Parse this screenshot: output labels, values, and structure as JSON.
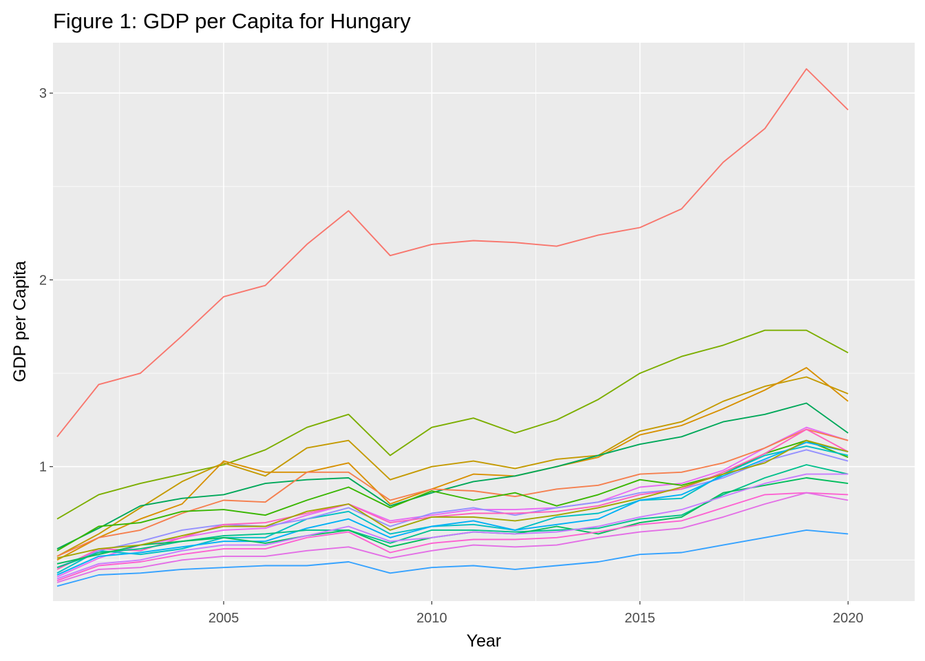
{
  "chart_data": {
    "type": "line",
    "title": "Figure 1: GDP per Capita for Hungary",
    "xlabel": "Year",
    "ylabel": "GDP per Capita",
    "xlim": [
      2000.9,
      2021.6
    ],
    "ylim": [
      0.28,
      3.27
    ],
    "x_ticks": [
      2005,
      2010,
      2015,
      2020
    ],
    "x_tick_labels": [
      "2005",
      "2010",
      "2015",
      "2020"
    ],
    "x_minor_ticks": [
      2002.5,
      2007.5,
      2012.5,
      2017.5
    ],
    "y_ticks": [
      1,
      2,
      3
    ],
    "y_tick_labels": [
      "1",
      "2",
      "3"
    ],
    "y_minor_ticks": [
      0.5,
      1.5,
      2.5
    ],
    "grid": true,
    "legend": "none",
    "background": "#ebebeb",
    "x": [
      2001,
      2002,
      2003,
      2004,
      2005,
      2006,
      2007,
      2008,
      2009,
      2010,
      2011,
      2012,
      2013,
      2014,
      2015,
      2016,
      2017,
      2018,
      2019,
      2020
    ],
    "series": [
      {
        "color": "#f8766d",
        "values": [
          1.16,
          1.44,
          1.5,
          1.7,
          1.91,
          1.97,
          2.19,
          2.37,
          2.13,
          2.19,
          2.21,
          2.2,
          2.18,
          2.24,
          2.28,
          2.38,
          2.63,
          2.81,
          3.13,
          2.91
        ]
      },
      {
        "color": "#7cae00",
        "values": [
          0.72,
          0.85,
          0.91,
          0.96,
          1.01,
          1.09,
          1.21,
          1.28,
          1.06,
          1.21,
          1.26,
          1.18,
          1.25,
          1.36,
          1.5,
          1.59,
          1.65,
          1.73,
          1.73,
          1.61
        ]
      },
      {
        "color": "#c49a00",
        "values": [
          0.52,
          0.64,
          0.78,
          0.92,
          1.02,
          0.95,
          1.1,
          1.14,
          0.93,
          1.0,
          1.03,
          0.99,
          1.04,
          1.06,
          1.19,
          1.24,
          1.35,
          1.43,
          1.48,
          1.39
        ]
      },
      {
        "color": "#d89000",
        "values": [
          0.5,
          0.62,
          0.72,
          0.8,
          1.03,
          0.97,
          0.97,
          1.02,
          0.8,
          0.88,
          0.96,
          0.95,
          1.0,
          1.05,
          1.17,
          1.22,
          1.31,
          1.41,
          1.53,
          1.35
        ]
      },
      {
        "color": "#00a85a",
        "values": [
          0.56,
          0.67,
          0.79,
          0.83,
          0.85,
          0.91,
          0.93,
          0.94,
          0.79,
          0.86,
          0.92,
          0.95,
          1.0,
          1.06,
          1.12,
          1.16,
          1.24,
          1.28,
          1.34,
          1.18
        ]
      },
      {
        "color": "#e76bf3",
        "values": [
          0.41,
          0.51,
          0.58,
          0.62,
          0.66,
          0.67,
          0.74,
          0.8,
          0.71,
          0.74,
          0.77,
          0.77,
          0.78,
          0.81,
          0.89,
          0.91,
          0.98,
          1.1,
          1.21,
          1.14
        ]
      },
      {
        "color": "#f57f4e",
        "values": [
          0.52,
          0.62,
          0.66,
          0.75,
          0.82,
          0.81,
          0.97,
          0.97,
          0.82,
          0.88,
          0.87,
          0.84,
          0.88,
          0.9,
          0.96,
          0.97,
          1.02,
          1.1,
          1.2,
          1.14
        ]
      },
      {
        "color": "#39b600",
        "values": [
          0.55,
          0.68,
          0.7,
          0.76,
          0.77,
          0.74,
          0.82,
          0.89,
          0.78,
          0.87,
          0.82,
          0.86,
          0.79,
          0.85,
          0.93,
          0.9,
          0.96,
          1.07,
          1.14,
          1.05
        ]
      },
      {
        "color": "#00bfc4",
        "values": [
          0.43,
          0.55,
          0.53,
          0.56,
          0.62,
          0.62,
          0.72,
          0.76,
          0.64,
          0.68,
          0.69,
          0.66,
          0.73,
          0.75,
          0.82,
          0.83,
          0.96,
          1.06,
          1.11,
          1.06
        ]
      },
      {
        "color": "#9590ff",
        "values": [
          0.46,
          0.55,
          0.6,
          0.66,
          0.69,
          0.68,
          0.72,
          0.78,
          0.68,
          0.75,
          0.78,
          0.74,
          0.78,
          0.81,
          0.86,
          0.88,
          0.94,
          1.03,
          1.09,
          1.03
        ]
      },
      {
        "color": "#00b0f6",
        "values": [
          0.42,
          0.52,
          0.54,
          0.57,
          0.6,
          0.6,
          0.67,
          0.72,
          0.62,
          0.68,
          0.71,
          0.66,
          0.69,
          0.72,
          0.82,
          0.85,
          0.95,
          1.04,
          1.13,
          1.08
        ]
      },
      {
        "color": "#ff62bc",
        "values": [
          0.45,
          0.56,
          0.55,
          0.62,
          0.69,
          0.7,
          0.75,
          0.8,
          0.7,
          0.73,
          0.75,
          0.75,
          0.76,
          0.79,
          0.85,
          0.88,
          0.97,
          1.07,
          1.2,
          1.08
        ]
      },
      {
        "color": "#00c08b",
        "values": [
          0.46,
          0.54,
          0.56,
          0.6,
          0.63,
          0.64,
          0.66,
          0.66,
          0.59,
          0.66,
          0.66,
          0.65,
          0.66,
          0.67,
          0.72,
          0.74,
          0.85,
          0.94,
          1.01,
          0.96
        ]
      },
      {
        "color": "#00bd5c",
        "values": [
          0.48,
          0.53,
          0.58,
          0.6,
          0.62,
          0.59,
          0.63,
          0.66,
          0.57,
          0.62,
          0.65,
          0.64,
          0.68,
          0.64,
          0.7,
          0.73,
          0.86,
          0.9,
          0.94,
          0.91
        ]
      },
      {
        "color": "#a3a500",
        "values": [
          0.51,
          0.56,
          0.58,
          0.63,
          0.68,
          0.68,
          0.76,
          0.8,
          0.66,
          0.73,
          0.73,
          0.71,
          0.74,
          0.78,
          0.83,
          0.89,
          0.96,
          1.02,
          1.14,
          1.08
        ]
      },
      {
        "color": "#c77cff",
        "values": [
          0.4,
          0.48,
          0.5,
          0.55,
          0.58,
          0.58,
          0.63,
          0.68,
          0.6,
          0.62,
          0.65,
          0.64,
          0.65,
          0.68,
          0.73,
          0.77,
          0.84,
          0.91,
          0.96,
          0.96
        ]
      },
      {
        "color": "#fd61d1",
        "values": [
          0.39,
          0.47,
          0.49,
          0.53,
          0.56,
          0.56,
          0.62,
          0.65,
          0.54,
          0.59,
          0.61,
          0.61,
          0.62,
          0.65,
          0.69,
          0.71,
          0.78,
          0.85,
          0.86,
          0.85
        ]
      },
      {
        "color": "#e36ee6",
        "values": [
          0.38,
          0.45,
          0.46,
          0.5,
          0.52,
          0.52,
          0.55,
          0.57,
          0.51,
          0.55,
          0.58,
          0.57,
          0.58,
          0.62,
          0.65,
          0.67,
          0.73,
          0.8,
          0.86,
          0.82
        ]
      },
      {
        "color": "#35a2ff",
        "values": [
          0.36,
          0.42,
          0.43,
          0.45,
          0.46,
          0.47,
          0.47,
          0.49,
          0.43,
          0.46,
          0.47,
          0.45,
          0.47,
          0.49,
          0.53,
          0.54,
          0.58,
          0.62,
          0.66,
          0.64
        ]
      }
    ]
  }
}
